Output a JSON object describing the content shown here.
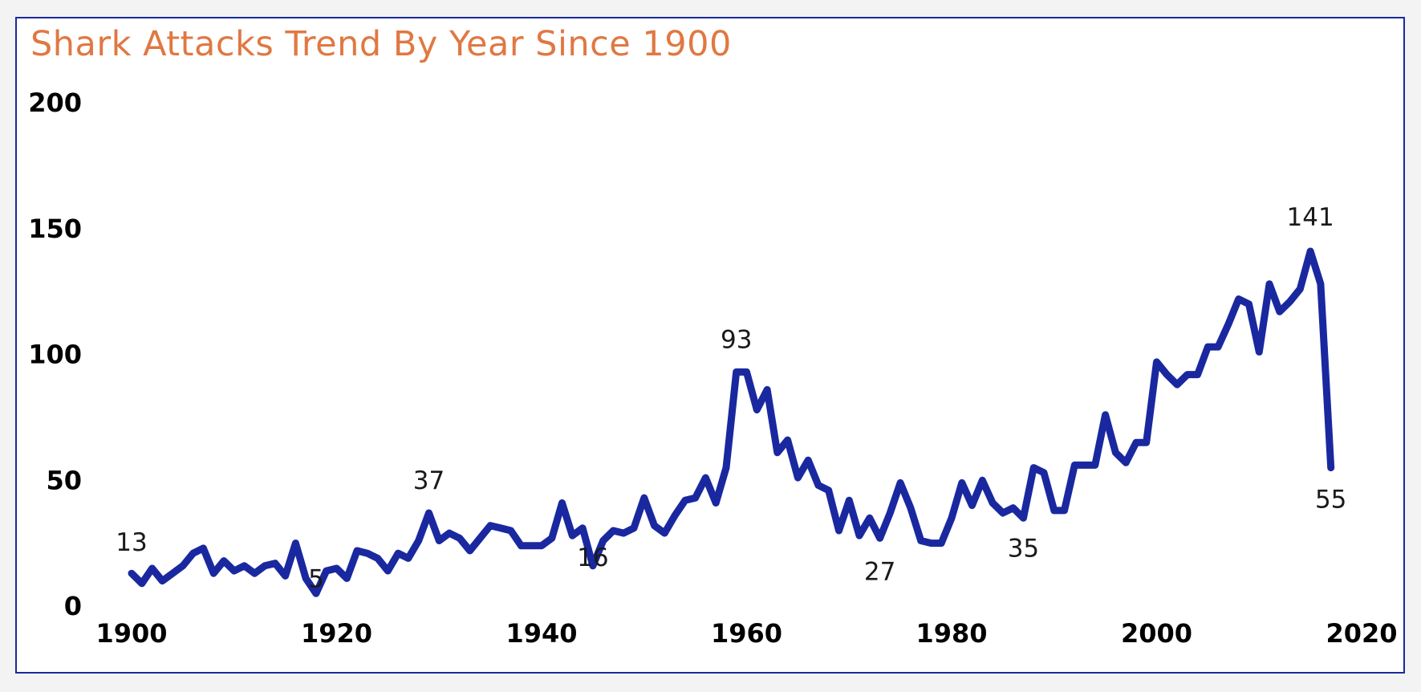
{
  "chart_data": {
    "type": "line",
    "title": "Shark Attacks Trend By Year Since 1900",
    "xlabel": "",
    "ylabel": "",
    "xlim": [
      1900,
      2020
    ],
    "ylim": [
      0,
      200
    ],
    "x_ticks": [
      "1900",
      "1920",
      "1940",
      "1960",
      "1980",
      "2000",
      "2020"
    ],
    "y_ticks": [
      "0",
      "50",
      "100",
      "150",
      "200"
    ],
    "grid": false,
    "legend": "none",
    "line_color": "#1a28a0",
    "title_color": "#e07842",
    "series": [
      {
        "x": [
          1900,
          1901,
          1902,
          1903,
          1904,
          1905,
          1906,
          1907,
          1908,
          1909,
          1910,
          1911,
          1912,
          1913,
          1914,
          1915,
          1916,
          1917,
          1918,
          1919,
          1920,
          1921,
          1922,
          1923,
          1924,
          1925,
          1926,
          1927,
          1928,
          1929,
          1930,
          1931,
          1932,
          1933,
          1934,
          1935,
          1936,
          1937,
          1938,
          1939,
          1940,
          1941,
          1942,
          1943,
          1944,
          1945,
          1946,
          1947,
          1948,
          1949,
          1950,
          1951,
          1952,
          1953,
          1954,
          1955,
          1956,
          1957,
          1958,
          1959,
          1960,
          1961,
          1962,
          1963,
          1964,
          1965,
          1966,
          1967,
          1968,
          1969,
          1970,
          1971,
          1972,
          1973,
          1974,
          1975,
          1976,
          1977,
          1978,
          1979,
          1980,
          1981,
          1982,
          1983,
          1984,
          1985,
          1986,
          1987,
          1988,
          1989,
          1990,
          1991,
          1992,
          1993,
          1994,
          1995,
          1996,
          1997,
          1998,
          1999,
          2000,
          2001,
          2002,
          2003,
          2004,
          2005,
          2006,
          2007,
          2008,
          2009,
          2010,
          2011,
          2012,
          2013,
          2014,
          2015,
          2016,
          2017
        ],
        "values": [
          13,
          9,
          15,
          10,
          13,
          16,
          21,
          23,
          13,
          18,
          14,
          16,
          13,
          16,
          17,
          12,
          25,
          11,
          5,
          14,
          15,
          11,
          22,
          21,
          19,
          14,
          21,
          19,
          26,
          37,
          26,
          29,
          27,
          22,
          27,
          32,
          31,
          30,
          24,
          24,
          24,
          27,
          41,
          28,
          31,
          16,
          26,
          30,
          29,
          31,
          43,
          32,
          29,
          36,
          42,
          43,
          51,
          41,
          55,
          93,
          93,
          78,
          86,
          61,
          66,
          51,
          58,
          48,
          46,
          30,
          42,
          28,
          35,
          27,
          37,
          49,
          39,
          26,
          25,
          25,
          35,
          49,
          40,
          50,
          41,
          37,
          39,
          35,
          55,
          53,
          38,
          38,
          56,
          56,
          56,
          76,
          61,
          57,
          65,
          65,
          97,
          92,
          88,
          92,
          92,
          103,
          103,
          112,
          122,
          120,
          101,
          128,
          117,
          121,
          126,
          141,
          128,
          55
        ]
      }
    ],
    "annotations": [
      {
        "x": 1900,
        "y": 13,
        "text": "13"
      },
      {
        "x": 1918,
        "y": 5,
        "text": "5"
      },
      {
        "x": 1929,
        "y": 37,
        "text": "37"
      },
      {
        "x": 1945,
        "y": 16,
        "text": "16"
      },
      {
        "x": 1959,
        "y": 93,
        "text": "93"
      },
      {
        "x": 1973,
        "y": 27,
        "text": "27"
      },
      {
        "x": 1987,
        "y": 35,
        "text": "35"
      },
      {
        "x": 2015,
        "y": 141,
        "text": "141"
      },
      {
        "x": 2017,
        "y": 55,
        "text": "55"
      }
    ]
  }
}
